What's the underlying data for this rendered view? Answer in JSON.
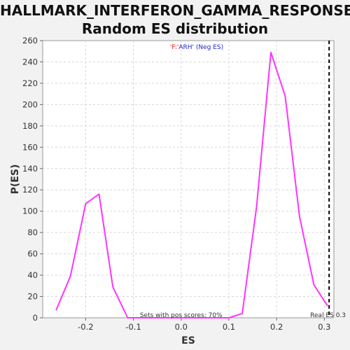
{
  "chart_data": {
    "type": "line",
    "title_line1": "HALLMARK_INTERFERON_GAMMA_RESPONSE:",
    "title_line2": "Random ES distribution",
    "xlabel": "ES",
    "ylabel": "P(ES)",
    "xlim": [
      -0.29,
      0.32
    ],
    "ylim": [
      0,
      260
    ],
    "xticks": [
      -0.2,
      -0.1,
      0.0,
      0.1,
      0.2,
      0.3
    ],
    "xtick_labels": [
      "-0.2",
      "-0.1",
      "0.0",
      "0.1",
      "0.2",
      "0.3"
    ],
    "yticks": [
      0,
      20,
      40,
      60,
      80,
      100,
      120,
      140,
      160,
      180,
      200,
      220,
      240,
      260
    ],
    "grid": true,
    "legend": {
      "placement": "top-center",
      "entries": [
        {
          "text": "'F:'",
          "color": "#ff0000"
        },
        {
          "text": "ARH' (Neg ES)",
          "color": "#2222cc"
        }
      ]
    },
    "series": [
      {
        "color": "#ff33ff",
        "points": [
          [
            -0.262,
            7
          ],
          [
            -0.232,
            39
          ],
          [
            -0.2,
            107
          ],
          [
            -0.172,
            116
          ],
          [
            -0.143,
            29
          ],
          [
            -0.112,
            0
          ],
          [
            0.0,
            0
          ],
          [
            0.1,
            0
          ],
          [
            0.128,
            4
          ],
          [
            0.158,
            104
          ],
          [
            0.188,
            249
          ],
          [
            0.218,
            208
          ],
          [
            0.248,
            95
          ],
          [
            0.278,
            31
          ],
          [
            0.307,
            11
          ]
        ]
      }
    ],
    "real_es": 0.31,
    "real_es_label": "Real ES 0.3",
    "pos_scores_label": "Sets with pos scores: 70%"
  }
}
